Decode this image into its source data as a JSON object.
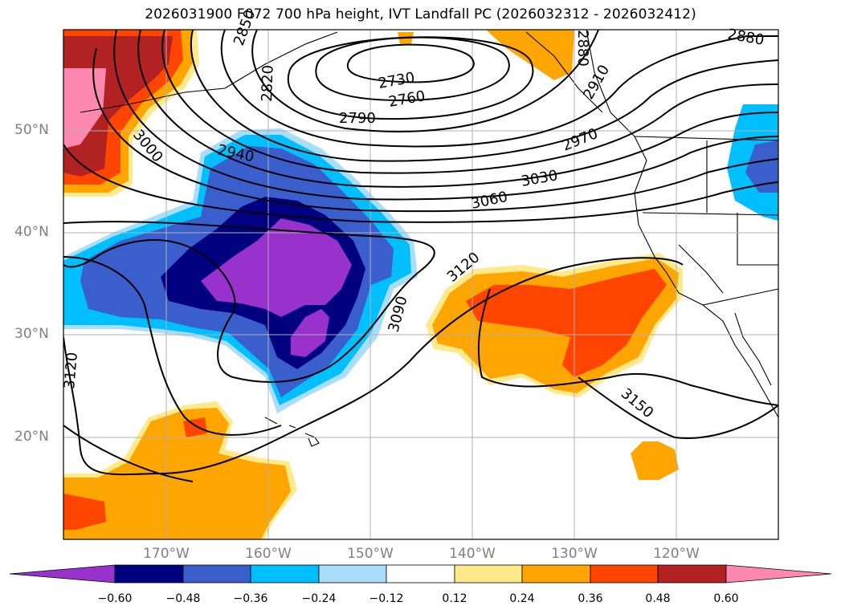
{
  "title": "2026031900 F072 700 hPa height, IVT Landfall PC (2026032312 - 2026032412)",
  "lat_labels": [
    "50°N",
    "40°N",
    "30°N",
    "20°N"
  ],
  "lon_labels": [
    "170°W",
    "160°W",
    "150°W",
    "140°W",
    "130°W",
    "120°W"
  ],
  "contour_labels": [
    "2730",
    "2760",
    "2790",
    "2820",
    "2880",
    "2910",
    "2940",
    "2970",
    "3000",
    "3030",
    "3060",
    "3090",
    "3120",
    "3120",
    "3120",
    "3150",
    "2850",
    "2880"
  ],
  "colorbar": {
    "ticks": [
      "−0.60",
      "−0.48",
      "−0.36",
      "−0.24",
      "−0.12",
      "0.12",
      "0.24",
      "0.36",
      "0.48",
      "0.60"
    ],
    "colors": [
      "#9932cc",
      "#000080",
      "#3a5fcd",
      "#00bfff",
      "#a8ddfb",
      "#ffffff",
      "#ffe98a",
      "#ffa500",
      "#ff4500",
      "#b22222",
      "#ff88b0"
    ]
  }
}
